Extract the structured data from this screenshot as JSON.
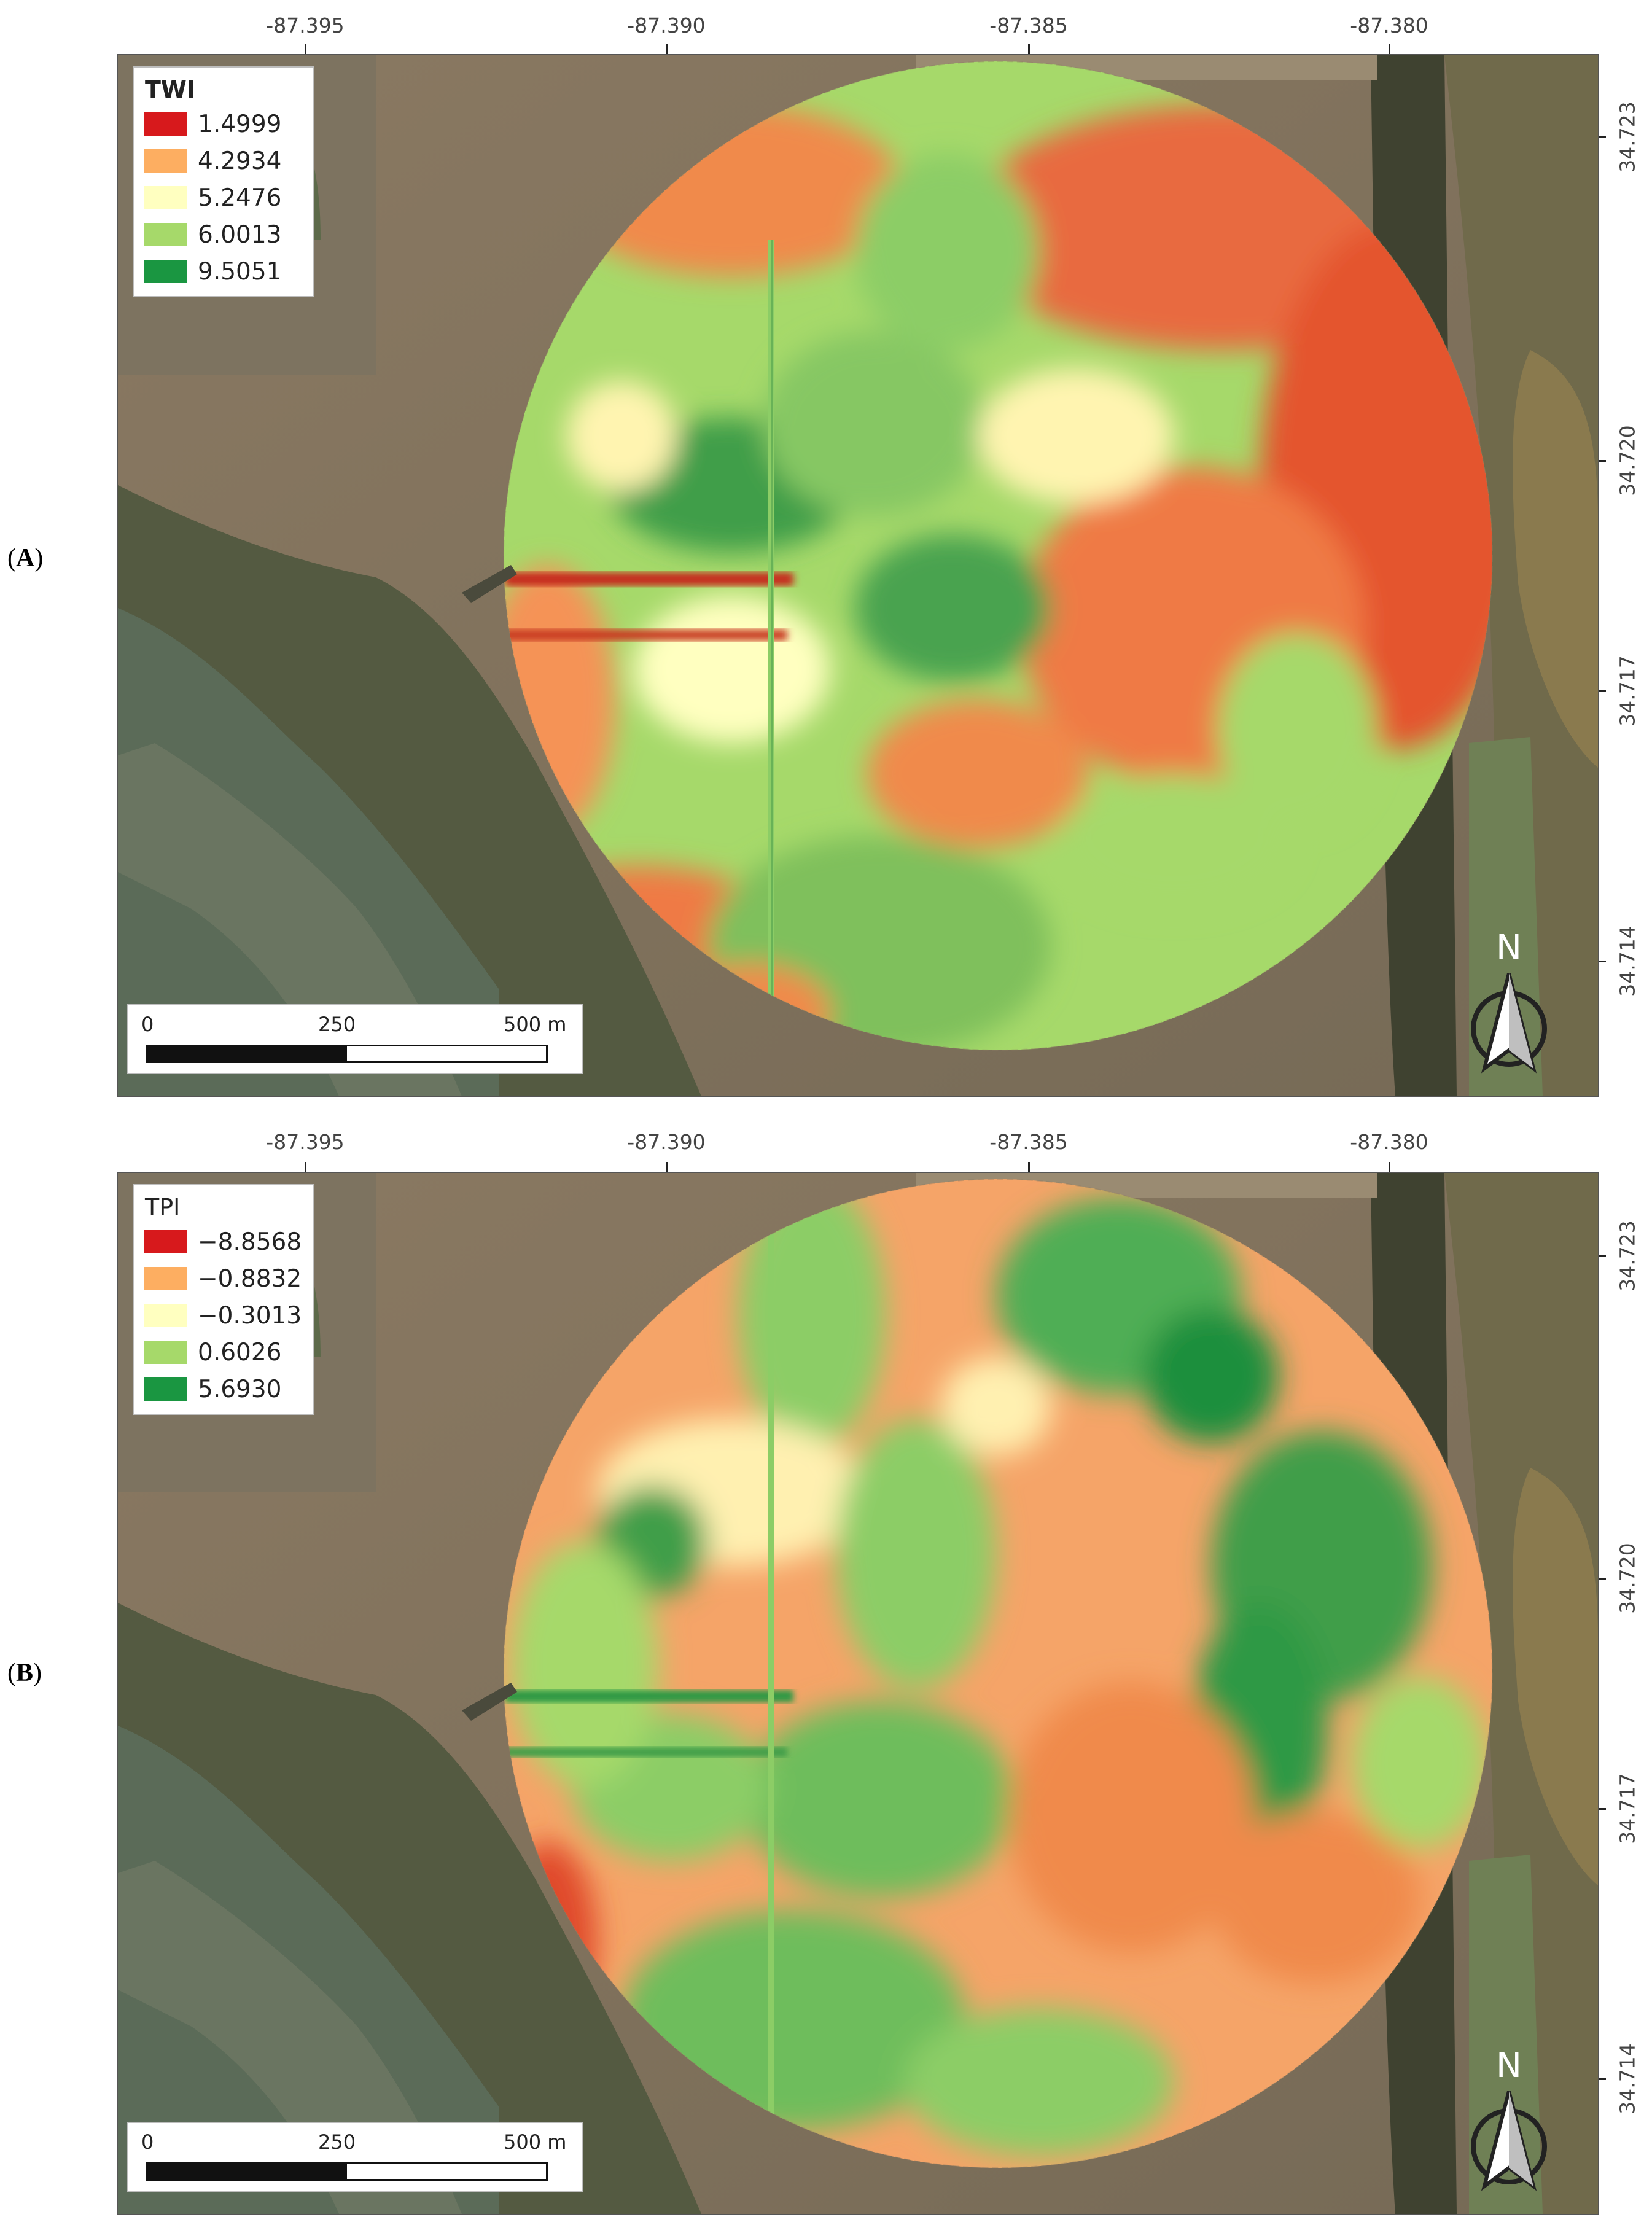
{
  "panels": [
    {
      "id": "A",
      "label_open": "(",
      "label_letter": "A",
      "label_close": ")",
      "legend_title": "TWI",
      "legend_bold": true,
      "legend_items": [
        {
          "value": "1.4999",
          "color": "#d7191c"
        },
        {
          "value": "4.2934",
          "color": "#fdae61"
        },
        {
          "value": "5.2476",
          "color": "#ffffc0"
        },
        {
          "value": "6.0013",
          "color": "#a6d96a"
        },
        {
          "value": "9.5051",
          "color": "#1a9641"
        }
      ],
      "top_coords": [
        "-87.395",
        "-87.390",
        "-87.385",
        "-87.380"
      ],
      "right_coords": [
        "34.723",
        "34.720",
        "34.717",
        "34.714"
      ],
      "scale_labels": [
        "0",
        "250",
        "500 m"
      ],
      "north_letter": "N"
    },
    {
      "id": "B",
      "label_open": "(",
      "label_letter": "B",
      "label_close": ")",
      "legend_title": "TPI",
      "legend_bold": false,
      "legend_items": [
        {
          "value": "−8.8568",
          "color": "#d7191c"
        },
        {
          "value": "−0.8832",
          "color": "#fdae61"
        },
        {
          "value": "−0.3013",
          "color": "#ffffc0"
        },
        {
          "value": "0.6026",
          "color": "#a6d96a"
        },
        {
          "value": "5.6930",
          "color": "#1a9641"
        }
      ],
      "top_coords": [
        "-87.395",
        "-87.390",
        "-87.385",
        "-87.380"
      ],
      "right_coords": [
        "34.723",
        "34.720",
        "34.717",
        "34.714"
      ],
      "scale_labels": [
        "0",
        "250",
        "500 m"
      ],
      "north_letter": "N"
    }
  ],
  "colors": {
    "red": "#d7191c",
    "orange": "#fdae61",
    "yellow": "#ffffc0",
    "light_green": "#a6d96a",
    "green": "#1a9641"
  }
}
